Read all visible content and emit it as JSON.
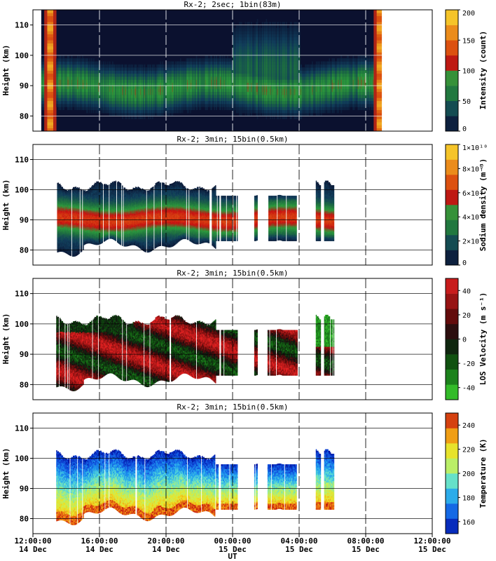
{
  "figure": {
    "xlabel": "UT",
    "time_ticks": [
      {
        "hour": 0,
        "time": "12:00:00",
        "date": "14 Dec"
      },
      {
        "hour": 4,
        "time": "16:00:00",
        "date": "14 Dec"
      },
      {
        "hour": 8,
        "time": "20:00:00",
        "date": "14 Dec"
      },
      {
        "hour": 12,
        "time": "00:00:00",
        "date": "15 Dec"
      },
      {
        "hour": 16,
        "time": "04:00:00",
        "date": "15 Dec"
      },
      {
        "hour": 20,
        "time": "08:00:00",
        "date": "15 Dec"
      },
      {
        "hour": 24,
        "time": "12:00:00",
        "date": "15 Dec"
      }
    ]
  },
  "chart_data": [
    {
      "type": "heatmap",
      "title": "Rx-2;  2sec; 1bin(83m)",
      "ylabel": "Height (km)",
      "ylim": [
        75,
        115
      ],
      "yticks": [
        "80",
        "90",
        "100",
        "110"
      ],
      "xlim_hours": [
        0,
        24
      ],
      "colorbar_label": "Intensity (count)",
      "colorbar_ticks": [
        "0",
        "50",
        "100",
        "150",
        "200"
      ],
      "colorbar_range": [
        0,
        200
      ],
      "colormap": [
        "#0a0a28",
        "#103c5a",
        "#1e7040",
        "#2c9a3c",
        "#c81010",
        "#e06010",
        "#f0a020",
        "#f8e030"
      ],
      "data_coverage_hours": [
        [
          0.5,
          20.9
        ]
      ],
      "bright_bands_hours": [
        1.0,
        20.8
      ],
      "layer_peak_km": 89
    },
    {
      "type": "heatmap",
      "title": "Rx-2; 3min; 15bin(0.5km)",
      "ylabel": "Height (km)",
      "ylim": [
        75,
        115
      ],
      "yticks": [
        "80",
        "90",
        "100",
        "110"
      ],
      "xlim_hours": [
        0,
        24
      ],
      "colorbar_label": "Sodium density (m⁻³)",
      "colorbar_ticks": [
        "0",
        "2×10⁹",
        "4×10⁹",
        "6×10⁹",
        "8×10⁹",
        "1×10¹⁰"
      ],
      "colorbar_range": [
        0,
        10000000000.0
      ],
      "colormap": [
        "#0a0a28",
        "#103c5a",
        "#1e7040",
        "#2c9a3c",
        "#c81010",
        "#e06010",
        "#f0a020",
        "#f8e030"
      ],
      "data_coverage_hours": [
        [
          1.4,
          11.2
        ],
        [
          11.3,
          12.3
        ],
        [
          13.3,
          13.5
        ],
        [
          14.1,
          15.9
        ],
        [
          17.0,
          17.3
        ],
        [
          17.5,
          18.1
        ]
      ],
      "layer_peak_km": 90
    },
    {
      "type": "heatmap",
      "title": "Rx-2; 3min; 15bin(0.5km)",
      "ylabel": "Height (km)",
      "ylim": [
        75,
        115
      ],
      "yticks": [
        "80",
        "90",
        "100",
        "110"
      ],
      "xlim_hours": [
        0,
        24
      ],
      "colorbar_label": "LOS Velocity (m s⁻¹)",
      "colorbar_ticks": [
        "-40",
        "-20",
        "0",
        "20",
        "40"
      ],
      "colorbar_range": [
        -50,
        50
      ],
      "colormap": [
        "#40d830",
        "#1e8a1e",
        "#0e4a0e",
        "#101010",
        "#5a0a0a",
        "#a01414",
        "#e02020"
      ],
      "data_coverage_hours": [
        [
          1.4,
          11.2
        ],
        [
          11.3,
          12.3
        ],
        [
          13.3,
          13.5
        ],
        [
          14.1,
          15.9
        ],
        [
          17.0,
          17.3
        ],
        [
          17.5,
          18.1
        ]
      ]
    },
    {
      "type": "heatmap",
      "title": "Rx-2; 3min; 15bin(0.5km)",
      "ylabel": "Height (km)",
      "ylim": [
        75,
        115
      ],
      "yticks": [
        "80",
        "90",
        "100",
        "110"
      ],
      "xlim_hours": [
        0,
        24
      ],
      "colorbar_label": "Temperature (K)",
      "colorbar_ticks": [
        "160",
        "180",
        "200",
        "220",
        "240"
      ],
      "colorbar_range": [
        150,
        250
      ],
      "colormap": [
        "#0010a0",
        "#1050e0",
        "#20a0f0",
        "#60e0d0",
        "#c0f060",
        "#f0e020",
        "#f08010",
        "#c01010"
      ],
      "data_coverage_hours": [
        [
          1.4,
          11.2
        ],
        [
          11.3,
          12.3
        ],
        [
          13.3,
          13.5
        ],
        [
          14.1,
          15.9
        ],
        [
          17.0,
          17.3
        ],
        [
          17.5,
          18.1
        ]
      ]
    }
  ]
}
